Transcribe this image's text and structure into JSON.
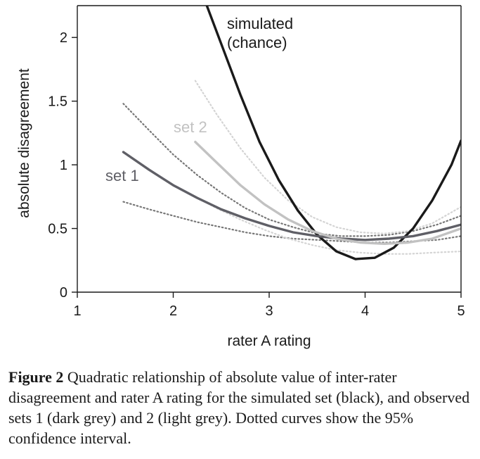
{
  "chart_data": {
    "type": "line",
    "xlabel": "rater A rating",
    "ylabel": "absolute disagreement",
    "xlim": [
      1,
      5
    ],
    "ylim": [
      0,
      2.25
    ],
    "xticks": [
      1,
      2,
      3,
      4,
      5
    ],
    "yticks": [
      0,
      0.5,
      1,
      1.5,
      2
    ],
    "ytick_labels": [
      "0",
      "0.5",
      "1",
      "1.5",
      "2"
    ],
    "series": [
      {
        "name": "simulated (chance)",
        "label_lines": [
          "simulated",
          "(chance)"
        ],
        "color": "#1a1a1a",
        "style": "solid",
        "x": [
          2.35,
          2.5,
          2.7,
          2.9,
          3.1,
          3.3,
          3.5,
          3.7,
          3.9,
          4.1,
          4.3,
          4.5,
          4.7,
          4.9,
          5.0
        ],
        "y": [
          2.25,
          1.95,
          1.55,
          1.18,
          0.88,
          0.64,
          0.45,
          0.32,
          0.26,
          0.27,
          0.35,
          0.5,
          0.72,
          1.0,
          1.19
        ]
      },
      {
        "name": "set 1",
        "color": "#5f5f66",
        "style": "solid",
        "x": [
          1.48,
          1.75,
          2.0,
          2.25,
          2.5,
          2.75,
          3.0,
          3.25,
          3.5,
          3.75,
          4.0,
          4.25,
          4.5,
          4.75,
          5.0
        ],
        "y": [
          1.1,
          0.96,
          0.84,
          0.74,
          0.65,
          0.58,
          0.52,
          0.47,
          0.44,
          0.42,
          0.41,
          0.42,
          0.44,
          0.48,
          0.53
        ]
      },
      {
        "name": "set 2",
        "color": "#c2c2c2",
        "style": "solid",
        "x": [
          2.23,
          2.45,
          2.7,
          2.95,
          3.2,
          3.45,
          3.7,
          3.95,
          4.2,
          4.45,
          4.7,
          5.0
        ],
        "y": [
          1.18,
          1.02,
          0.84,
          0.69,
          0.57,
          0.48,
          0.42,
          0.39,
          0.38,
          0.39,
          0.42,
          0.5
        ]
      },
      {
        "name": "set 1 95% CI upper",
        "color": "#777777",
        "style": "dotted",
        "x": [
          1.48,
          1.75,
          2.0,
          2.25,
          2.5,
          2.75,
          3.0,
          3.25,
          3.5,
          3.75,
          4.0,
          4.25,
          4.5,
          4.75,
          5.0
        ],
        "y": [
          1.48,
          1.27,
          1.08,
          0.92,
          0.78,
          0.66,
          0.57,
          0.51,
          0.46,
          0.44,
          0.44,
          0.45,
          0.48,
          0.53,
          0.6
        ]
      },
      {
        "name": "set 1 95% CI lower",
        "color": "#777777",
        "style": "dotted",
        "x": [
          1.48,
          1.75,
          2.0,
          2.25,
          2.5,
          2.75,
          3.0,
          3.25,
          3.5,
          3.75,
          4.0,
          4.25,
          4.5,
          4.75,
          5.0
        ],
        "y": [
          0.71,
          0.65,
          0.6,
          0.55,
          0.51,
          0.47,
          0.44,
          0.42,
          0.41,
          0.4,
          0.39,
          0.39,
          0.4,
          0.41,
          0.44
        ]
      },
      {
        "name": "set 2 95% CI upper",
        "color": "#d4d4d4",
        "style": "dotted",
        "x": [
          2.23,
          2.45,
          2.7,
          2.95,
          3.2,
          3.45,
          3.7,
          3.95,
          4.2,
          4.45,
          4.7,
          5.0
        ],
        "y": [
          1.66,
          1.4,
          1.13,
          0.9,
          0.72,
          0.59,
          0.51,
          0.47,
          0.46,
          0.48,
          0.54,
          0.67
        ]
      },
      {
        "name": "set 2 95% CI lower",
        "color": "#d4d4d4",
        "style": "dotted",
        "x": [
          2.23,
          2.45,
          2.7,
          2.95,
          3.2,
          3.45,
          3.7,
          3.95,
          4.2,
          4.45,
          4.7,
          5.0
        ],
        "y": [
          0.75,
          0.66,
          0.57,
          0.49,
          0.42,
          0.37,
          0.33,
          0.31,
          0.3,
          0.3,
          0.31,
          0.32
        ]
      }
    ]
  },
  "caption": {
    "figure_number": "Figure 2",
    "text": " Quadratic relationship of absolute value of inter-rater disagreement and rater A rating for the simulated set (black), and observed sets 1 (dark grey) and 2 (light grey). Dotted curves show the 95% confidence interval."
  }
}
